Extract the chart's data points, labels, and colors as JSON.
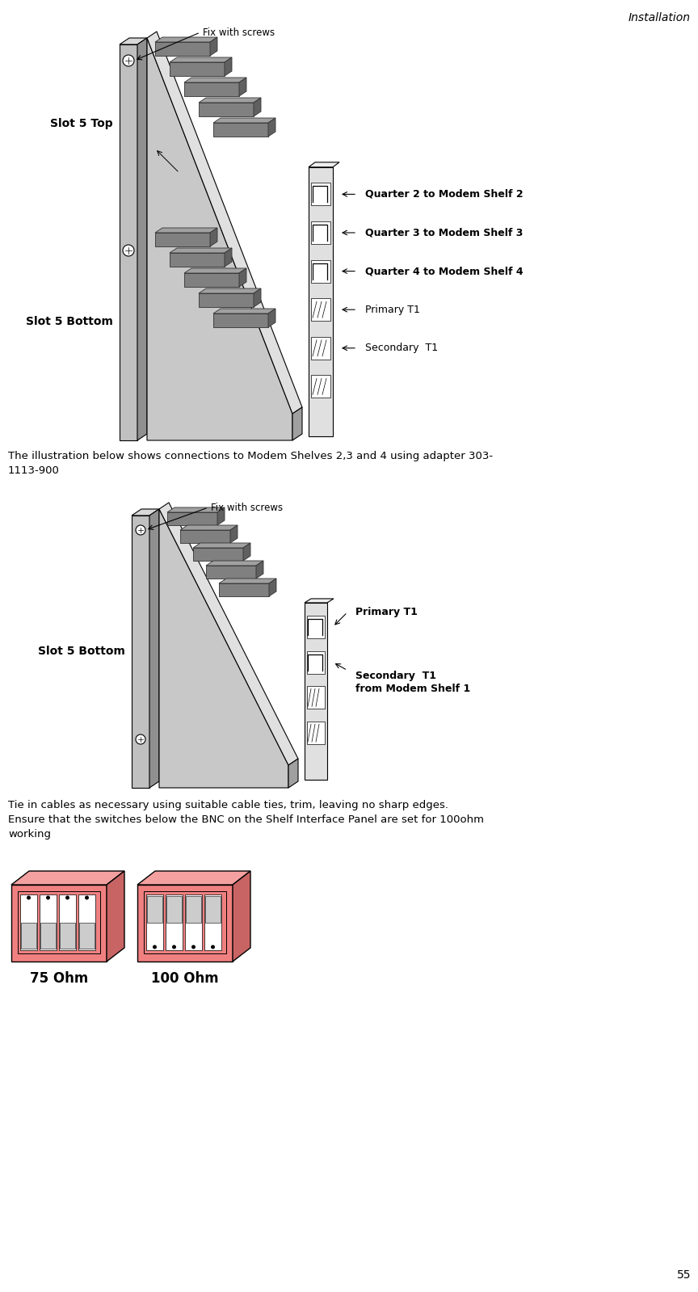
{
  "page_title": "Installation",
  "page_number": "55",
  "background_color": "#ffffff",
  "fig_width": 8.64,
  "fig_height": 15.99,
  "header_text": "Installation",
  "body_text_1": "The illustration below shows connections to Modem Shelves 2,3 and 4 using adapter 303-\n1113-900",
  "body_text_2": "Tie in cables as necessary using suitable cable ties, trim, leaving no sharp edges.\nEnsure that the switches below the BNC on the Shelf Interface Panel are set for 100ohm\nworking",
  "d1_slot5top": "Slot 5 Top",
  "d1_slot5bottom": "Slot 5 Bottom",
  "d1_fix_screws": "Fix with screws",
  "d1_q2": "Quarter 2 to Modem Shelf 2",
  "d1_q3": "Quarter 3 to Modem Shelf 3",
  "d1_q4": "Quarter 4 to Modem Shelf 4",
  "d1_primary": "Primary T1",
  "d1_secondary": "Secondary  T1",
  "d2_slot5bottom": "Slot 5 Bottom",
  "d2_fix_screws": "Fix with screws",
  "d2_primary": "Primary T1",
  "d2_secondary": "Secondary  T1\nfrom Modem Shelf 1",
  "switch_label_75": "75 Ohm",
  "switch_label_100": "100 Ohm"
}
